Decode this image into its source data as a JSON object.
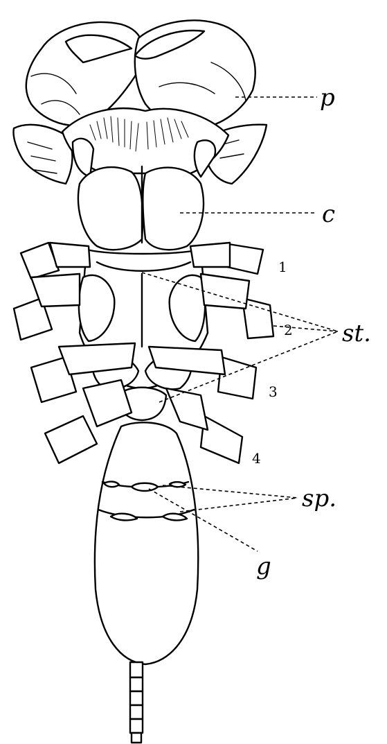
{
  "labels": {
    "p": "p",
    "c": "c",
    "st": "st.",
    "sp": "sp.",
    "g": "g"
  },
  "leg_numbers": [
    "1",
    "2",
    "3",
    "4"
  ],
  "colors": {
    "ink": "#000000",
    "paper": "#ffffff"
  }
}
